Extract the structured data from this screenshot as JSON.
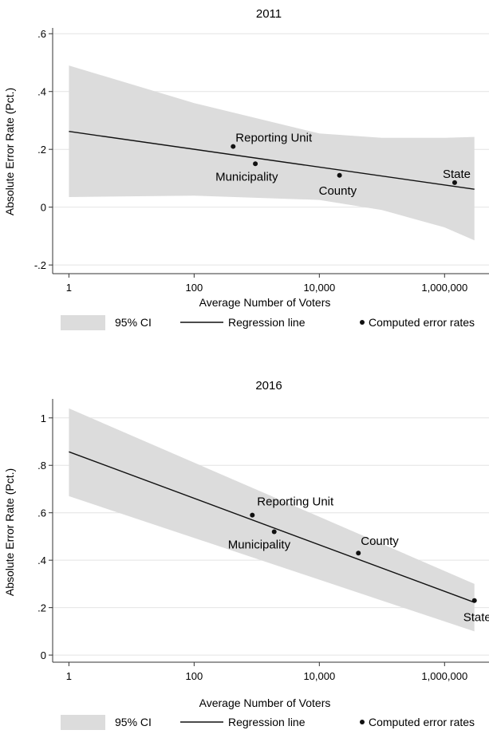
{
  "chart_data": [
    {
      "type": "scatter",
      "title": "2011",
      "xlabel": "Average Number of Voters",
      "ylabel": "Absolute Error Rate (Pct.)",
      "x_scale": "log",
      "x_ticks": [
        1,
        100,
        10000,
        1000000
      ],
      "x_tick_labels": [
        "1",
        "100",
        "10,000",
        "1,000,000"
      ],
      "y_ticks": [
        -0.2,
        0,
        0.2,
        0.4,
        0.6
      ],
      "y_tick_labels": [
        "-.2",
        "0",
        ".2",
        ".4",
        ".6"
      ],
      "xlim": [
        0.55,
        3500000
      ],
      "ylim": [
        -0.23,
        0.62
      ],
      "grid": true,
      "points": [
        {
          "label": "Reporting Unit",
          "x": 420,
          "y": 0.21
        },
        {
          "label": "Municipality",
          "x": 950,
          "y": 0.15
        },
        {
          "label": "County",
          "x": 21000,
          "y": 0.11
        },
        {
          "label": "State",
          "x": 1450000,
          "y": 0.085
        }
      ],
      "regression": {
        "x": [
          1,
          3000000
        ],
        "y": [
          0.262,
          0.062
        ]
      },
      "ci_band": {
        "x": [
          1,
          100,
          10000,
          100000,
          1000000,
          3000000
        ],
        "lower": [
          0.035,
          0.04,
          0.025,
          -0.01,
          -0.07,
          -0.115
        ],
        "upper": [
          0.49,
          0.36,
          0.255,
          0.24,
          0.24,
          0.243
        ]
      }
    },
    {
      "type": "scatter",
      "title": "2016",
      "xlabel": "Average Number of Voters",
      "ylabel": "Absolute Error Rate (Pct.)",
      "x_scale": "log",
      "x_ticks": [
        1,
        100,
        10000,
        1000000
      ],
      "x_tick_labels": [
        "1",
        "100",
        "10,000",
        "1,000,000"
      ],
      "y_ticks": [
        0,
        0.2,
        0.4,
        0.6,
        0.8,
        1
      ],
      "y_tick_labels": [
        "0",
        ".2",
        ".4",
        ".6",
        ".8",
        "1"
      ],
      "xlim": [
        0.55,
        3500000
      ],
      "ylim": [
        -0.03,
        1.08
      ],
      "grid": true,
      "points": [
        {
          "label": "Reporting Unit",
          "x": 850,
          "y": 0.59
        },
        {
          "label": "Municipality",
          "x": 1900,
          "y": 0.52
        },
        {
          "label": "County",
          "x": 42000,
          "y": 0.43
        },
        {
          "label": "State",
          "x": 3000000,
          "y": 0.23
        }
      ],
      "regression": {
        "x": [
          1,
          3000000
        ],
        "y": [
          0.857,
          0.222
        ]
      },
      "ci_band": {
        "x": [
          1,
          3000000
        ],
        "lower": [
          0.67,
          0.1
        ],
        "upper": [
          1.04,
          0.3
        ]
      }
    }
  ],
  "legend": {
    "ci_label": "95% CI",
    "line_label": "Regression line",
    "points_label": "Computed error rates",
    "placement": "bottom"
  },
  "colors": {
    "band": "#dcdcdc",
    "grid": "#e4e4e4",
    "line": "#111111",
    "axis": "#333333"
  }
}
